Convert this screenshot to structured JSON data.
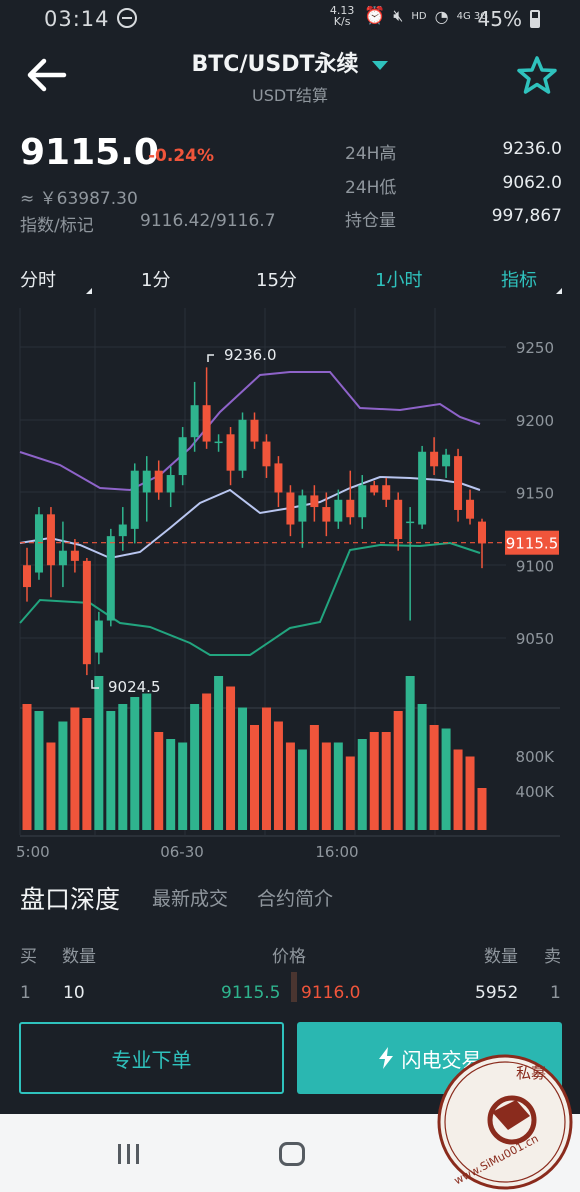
{
  "status": {
    "time": "03:14",
    "net_speed": "4.13 K/s",
    "hd": "HD",
    "net_types": "4G 3G",
    "battery": "45%"
  },
  "header": {
    "title": "BTC/USDT永续",
    "subtitle": "USDT结算"
  },
  "ticker": {
    "price": "9115.0",
    "change": "-0.24%",
    "cny": "≈ ￥63987.30",
    "index_label": "指数/标记",
    "index_value": "9116.42/9116.7",
    "stats": [
      {
        "label": "24H高",
        "value": "9236.0"
      },
      {
        "label": "24H低",
        "value": "9062.0"
      },
      {
        "label": "持仓量",
        "value": "997,867"
      }
    ]
  },
  "tabs": {
    "t1": "分时",
    "t2": "1分",
    "t3": "15分",
    "t4": "1小时",
    "t5": "指标"
  },
  "chart_data": {
    "type": "candlestick",
    "y_ticks": [
      "9250",
      "9200",
      "9150",
      "9100",
      "9050"
    ],
    "vol_ticks": [
      "800K",
      "400K"
    ],
    "x_ticks": [
      "5:00",
      "06-30",
      "16:00"
    ],
    "high_label": "9236.0",
    "low_label": "9024.5",
    "last_price_label": "9115.5",
    "price_range": [
      9000,
      9270
    ],
    "candles": [
      {
        "o": 9100,
        "c": 9085,
        "h": 9112,
        "l": 9075
      },
      {
        "o": 9095,
        "c": 9135,
        "h": 9140,
        "l": 9090
      },
      {
        "o": 9135,
        "c": 9100,
        "h": 9140,
        "l": 9078
      },
      {
        "o": 9100,
        "c": 9110,
        "h": 9130,
        "l": 9085
      },
      {
        "o": 9110,
        "c": 9103,
        "h": 9118,
        "l": 9095
      },
      {
        "o": 9103,
        "c": 9032,
        "h": 9105,
        "l": 9024.5
      },
      {
        "o": 9040,
        "c": 9062,
        "h": 9068,
        "l": 9032
      },
      {
        "o": 9062,
        "c": 9120,
        "h": 9125,
        "l": 9058
      },
      {
        "o": 9120,
        "c": 9128,
        "h": 9140,
        "l": 9110
      },
      {
        "o": 9125,
        "c": 9165,
        "h": 9170,
        "l": 9115
      },
      {
        "o": 9150,
        "c": 9165,
        "h": 9175,
        "l": 9130
      },
      {
        "o": 9165,
        "c": 9150,
        "h": 9172,
        "l": 9145
      },
      {
        "o": 9150,
        "c": 9162,
        "h": 9168,
        "l": 9140
      },
      {
        "o": 9162,
        "c": 9188,
        "h": 9195,
        "l": 9155
      },
      {
        "o": 9188,
        "c": 9210,
        "h": 9226,
        "l": 9178
      },
      {
        "o": 9210,
        "c": 9185,
        "h": 9236,
        "l": 9180
      },
      {
        "o": 9185,
        "c": 9185,
        "h": 9190,
        "l": 9178
      },
      {
        "o": 9190,
        "c": 9165,
        "h": 9195,
        "l": 9155
      },
      {
        "o": 9165,
        "c": 9200,
        "h": 9205,
        "l": 9160
      },
      {
        "o": 9200,
        "c": 9185,
        "h": 9205,
        "l": 9180
      },
      {
        "o": 9185,
        "c": 9168,
        "h": 9190,
        "l": 9160
      },
      {
        "o": 9170,
        "c": 9150,
        "h": 9175,
        "l": 9140
      },
      {
        "o": 9150,
        "c": 9128,
        "h": 9155,
        "l": 9120
      },
      {
        "o": 9130,
        "c": 9148,
        "h": 9152,
        "l": 9112
      },
      {
        "o": 9148,
        "c": 9140,
        "h": 9155,
        "l": 9130
      },
      {
        "o": 9140,
        "c": 9130,
        "h": 9150,
        "l": 9120
      },
      {
        "o": 9130,
        "c": 9145,
        "h": 9152,
        "l": 9125
      },
      {
        "o": 9145,
        "c": 9133,
        "h": 9165,
        "l": 9128
      },
      {
        "o": 9133,
        "c": 9155,
        "h": 9162,
        "l": 9125
      },
      {
        "o": 9155,
        "c": 9150,
        "h": 9158,
        "l": 9148
      },
      {
        "o": 9155,
        "c": 9145,
        "h": 9160,
        "l": 9140
      },
      {
        "o": 9145,
        "c": 9118,
        "h": 9150,
        "l": 9110
      },
      {
        "o": 9130,
        "c": 9130,
        "h": 9140,
        "l": 9062
      },
      {
        "o": 9128,
        "c": 9178,
        "h": 9182,
        "l": 9125
      },
      {
        "o": 9178,
        "c": 9168,
        "h": 9188,
        "l": 9162
      },
      {
        "o": 9168,
        "c": 9176,
        "h": 9180,
        "l": 9160
      },
      {
        "o": 9175,
        "c": 9138,
        "h": 9180,
        "l": 9130
      },
      {
        "o": 9145,
        "c": 9132,
        "h": 9152,
        "l": 9128
      },
      {
        "o": 9130,
        "c": 9115,
        "h": 9132,
        "l": 9098
      }
    ],
    "volumes": [
      720,
      680,
      500,
      620,
      700,
      640,
      880,
      680,
      720,
      760,
      780,
      560,
      520,
      500,
      720,
      780,
      880,
      820,
      700,
      600,
      700,
      620,
      500,
      460,
      600,
      500,
      500,
      420,
      520,
      560,
      560,
      680,
      880,
      720,
      600,
      580,
      460,
      420,
      240
    ]
  },
  "orderbook": {
    "title": "盘口深度",
    "tab_trades": "最新成交",
    "tab_info": "合约简介",
    "buy_h": "买",
    "qty_h": "数量",
    "price_h": "价格",
    "qty_h2": "数量",
    "sell_h": "卖",
    "buy_idx": "1",
    "buy_qty": "10",
    "bid": "9115.5",
    "ask": "9116.0",
    "sell_qty": "5952",
    "sell_idx": "1"
  },
  "actions": {
    "pro_order": "专业下单",
    "flash_trade": "闪电交易"
  },
  "watermark": {
    "text_top": "私募",
    "text_bottom": "www.SiMu001.cn"
  },
  "colors": {
    "up": "#2fb48e",
    "down": "#f0553b",
    "accent": "#2fc2bd",
    "boll_upper": "#8e63c9",
    "boll_mid": "#b9c6f0",
    "boll_lower": "#22a57f"
  }
}
